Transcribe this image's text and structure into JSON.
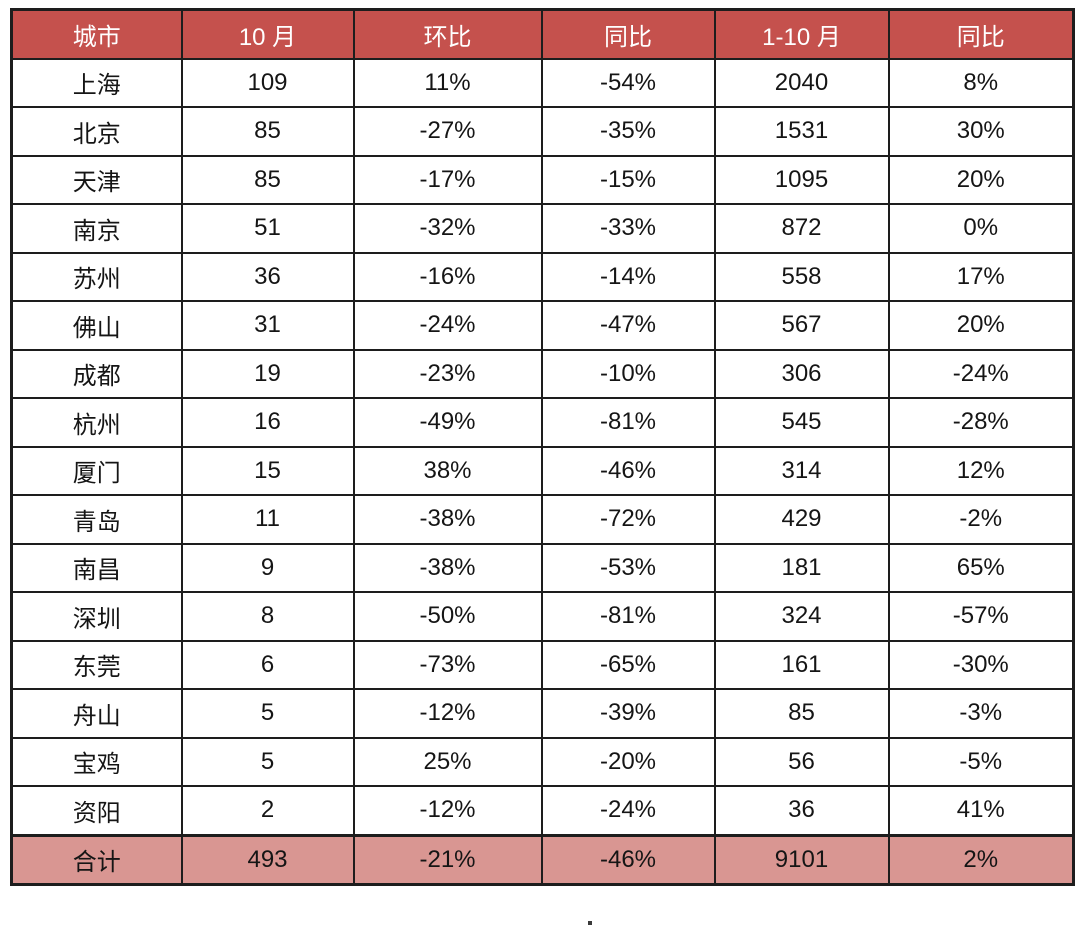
{
  "colors": {
    "header_bg": "#c5514d",
    "header_text": "#ffffff",
    "total_bg": "#d99692",
    "border": "#1d1d1d",
    "text": "#151515"
  },
  "chart_data": {
    "type": "table",
    "columns": [
      "城市",
      "10 月",
      "环比",
      "同比",
      "1-10 月",
      "同比"
    ],
    "rows": [
      [
        "上海",
        "109",
        "11%",
        "-54%",
        "2040",
        "8%"
      ],
      [
        "北京",
        "85",
        "-27%",
        "-35%",
        "1531",
        "30%"
      ],
      [
        "天津",
        "85",
        "-17%",
        "-15%",
        "1095",
        "20%"
      ],
      [
        "南京",
        "51",
        "-32%",
        "-33%",
        "872",
        "0%"
      ],
      [
        "苏州",
        "36",
        "-16%",
        "-14%",
        "558",
        "17%"
      ],
      [
        "佛山",
        "31",
        "-24%",
        "-47%",
        "567",
        "20%"
      ],
      [
        "成都",
        "19",
        "-23%",
        "-10%",
        "306",
        "-24%"
      ],
      [
        "杭州",
        "16",
        "-49%",
        "-81%",
        "545",
        "-28%"
      ],
      [
        "厦门",
        "15",
        "38%",
        "-46%",
        "314",
        "12%"
      ],
      [
        "青岛",
        "11",
        "-38%",
        "-72%",
        "429",
        "-2%"
      ],
      [
        "南昌",
        "9",
        "-38%",
        "-53%",
        "181",
        "65%"
      ],
      [
        "深圳",
        "8",
        "-50%",
        "-81%",
        "324",
        "-57%"
      ],
      [
        "东莞",
        "6",
        "-73%",
        "-65%",
        "161",
        "-30%"
      ],
      [
        "舟山",
        "5",
        "-12%",
        "-39%",
        "85",
        "-3%"
      ],
      [
        "宝鸡",
        "5",
        "25%",
        "-20%",
        "56",
        "-5%"
      ],
      [
        "资阳",
        "2",
        "-12%",
        "-24%",
        "36",
        "41%"
      ]
    ],
    "total_row": [
      "合计",
      "493",
      "-21%",
      "-46%",
      "9101",
      "2%"
    ],
    "title": "",
    "layout_hints": {
      "header_style": "red background, white text",
      "total_style": "pink background, thick top border",
      "alignment": "all cells centered",
      "grid": "full black grid borders"
    }
  }
}
